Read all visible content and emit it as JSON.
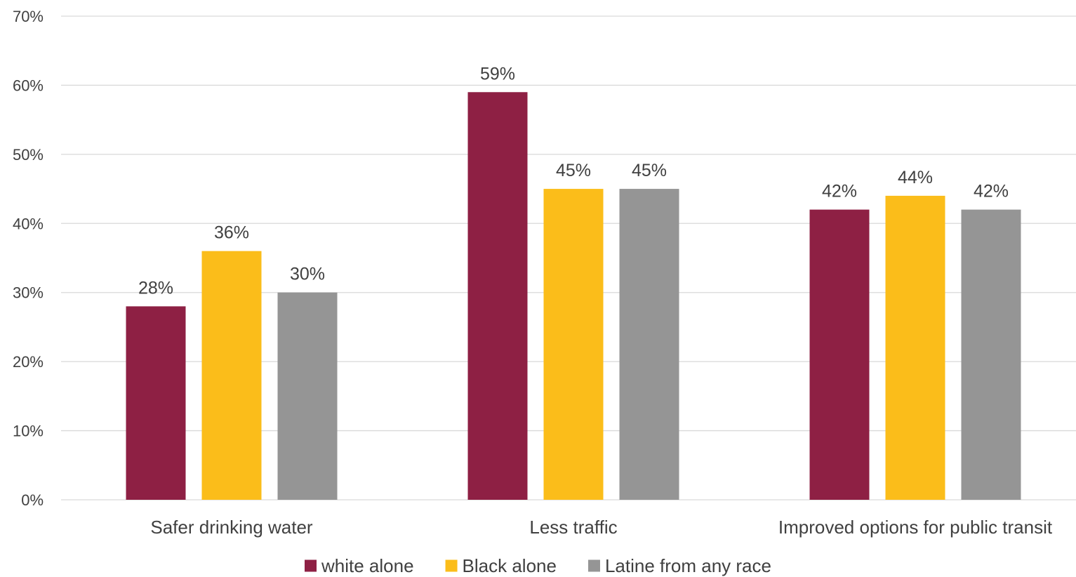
{
  "chart_data": {
    "type": "bar",
    "categories": [
      "Safer drinking water",
      "Less traffic",
      "Improved options for public transit"
    ],
    "series": [
      {
        "name": "white alone",
        "values": [
          28,
          59,
          42
        ],
        "color": "#8E2044"
      },
      {
        "name": "Black alone",
        "values": [
          36,
          45,
          44
        ],
        "color": "#FBBD1A"
      },
      {
        "name": "Latine from any race",
        "values": [
          30,
          45,
          42
        ],
        "color": "#959595"
      }
    ],
    "data_labels": [
      [
        "28%",
        "59%",
        "42%"
      ],
      [
        "36%",
        "45%",
        "44%"
      ],
      [
        "30%",
        "45%",
        "42%"
      ]
    ],
    "y_ticks": [
      "0%",
      "10%",
      "20%",
      "30%",
      "40%",
      "50%",
      "60%",
      "70%"
    ],
    "ylim": [
      0,
      70
    ],
    "grid": true,
    "gridline_color": "#D9D9D9",
    "legend_position": "bottom",
    "title": "",
    "xlabel": "",
    "ylabel": ""
  }
}
